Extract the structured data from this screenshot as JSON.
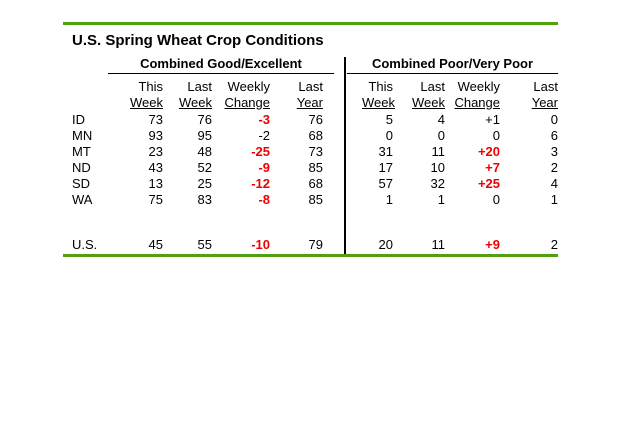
{
  "title": "U.S. Spring Wheat Crop Conditions",
  "colors": {
    "accent_green": "#4fa20e",
    "highlight_red": "#ee0000"
  },
  "chart_data": {
    "type": "table",
    "title": "U.S. Spring Wheat Crop Conditions",
    "sections": {
      "left": "Combined Good/Excellent",
      "right": "Combined Poor/Very Poor"
    },
    "column_headers_line1": [
      "This",
      "Last",
      "Weekly",
      "Last"
    ],
    "column_headers_line2": [
      "Week",
      "Week",
      "Change",
      "Year"
    ],
    "rows": [
      {
        "label": "ID",
        "good_excellent": {
          "this_week": "73",
          "last_week": "76",
          "weekly_change": "-3",
          "weekly_change_highlighted": true,
          "last_year": "76"
        },
        "poor_very_poor": {
          "this_week": "5",
          "last_week": "4",
          "weekly_change": "+1",
          "weekly_change_highlighted": false,
          "last_year": "0"
        }
      },
      {
        "label": "MN",
        "good_excellent": {
          "this_week": "93",
          "last_week": "95",
          "weekly_change": "-2",
          "weekly_change_highlighted": false,
          "last_year": "68"
        },
        "poor_very_poor": {
          "this_week": "0",
          "last_week": "0",
          "weekly_change": "0",
          "weekly_change_highlighted": false,
          "last_year": "6"
        }
      },
      {
        "label": "MT",
        "good_excellent": {
          "this_week": "23",
          "last_week": "48",
          "weekly_change": "-25",
          "weekly_change_highlighted": true,
          "last_year": "73"
        },
        "poor_very_poor": {
          "this_week": "31",
          "last_week": "11",
          "weekly_change": "+20",
          "weekly_change_highlighted": true,
          "last_year": "3"
        }
      },
      {
        "label": "ND",
        "good_excellent": {
          "this_week": "43",
          "last_week": "52",
          "weekly_change": "-9",
          "weekly_change_highlighted": true,
          "last_year": "85"
        },
        "poor_very_poor": {
          "this_week": "17",
          "last_week": "10",
          "weekly_change": "+7",
          "weekly_change_highlighted": true,
          "last_year": "2"
        }
      },
      {
        "label": "SD",
        "good_excellent": {
          "this_week": "13",
          "last_week": "25",
          "weekly_change": "-12",
          "weekly_change_highlighted": true,
          "last_year": "68"
        },
        "poor_very_poor": {
          "this_week": "57",
          "last_week": "32",
          "weekly_change": "+25",
          "weekly_change_highlighted": true,
          "last_year": "4"
        }
      },
      {
        "label": "WA",
        "good_excellent": {
          "this_week": "75",
          "last_week": "83",
          "weekly_change": "-8",
          "weekly_change_highlighted": true,
          "last_year": "85"
        },
        "poor_very_poor": {
          "this_week": "1",
          "last_week": "1",
          "weekly_change": "0",
          "weekly_change_highlighted": false,
          "last_year": "1"
        }
      }
    ],
    "us_row": {
      "label": "U.S.",
      "good_excellent": {
        "this_week": "45",
        "last_week": "55",
        "weekly_change": "-10",
        "weekly_change_highlighted": true,
        "last_year": "79"
      },
      "poor_very_poor": {
        "this_week": "20",
        "last_week": "11",
        "weekly_change": "+9",
        "weekly_change_highlighted": true,
        "last_year": "2"
      }
    }
  }
}
